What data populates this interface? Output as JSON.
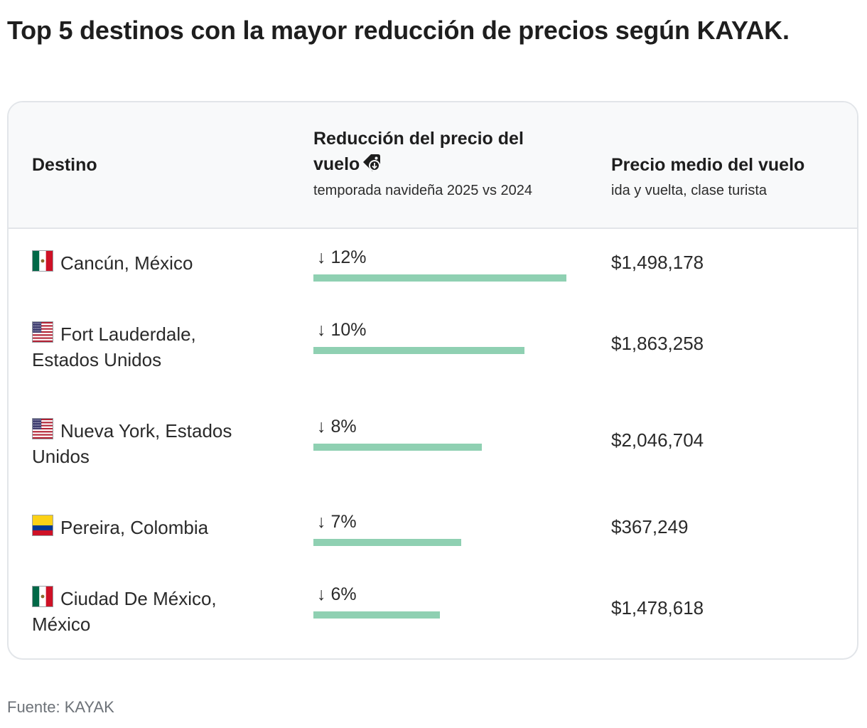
{
  "title": "Top 5 destinos con la mayor reducción de precios según KAYAK.",
  "header": {
    "destino": "Destino",
    "reduccion": "Reducción del precio del vuelo",
    "reduccion_sub": "temporada navideña 2025 vs 2024",
    "precio": "Precio medio del vuelo",
    "precio_sub": "ida y vuelta, clase turista"
  },
  "rows": [
    {
      "destino": "Cancún, México",
      "flag": "mexico",
      "reduccion": "↓ 12%",
      "reduccion_value": 12,
      "precio": "$1,498,178"
    },
    {
      "destino": "Fort Lauderdale, Estados Unidos",
      "flag": "usa",
      "reduccion": "↓ 10%",
      "reduccion_value": 10,
      "precio": "$1,863,258"
    },
    {
      "destino": "Nueva York, Estados Unidos",
      "flag": "usa",
      "reduccion": "↓ 8%",
      "reduccion_value": 8,
      "precio": "$2,046,704"
    },
    {
      "destino": "Pereira, Colombia",
      "flag": "colombia",
      "reduccion": "↓ 7%",
      "reduccion_value": 7,
      "precio": "$367,249"
    },
    {
      "destino": "Ciudad De México, México",
      "flag": "mexico",
      "reduccion": "↓ 6%",
      "reduccion_value": 6,
      "precio": "$1,478,618"
    }
  ],
  "source": "Fuente: KAYAK",
  "colors": {
    "bar": "#8fd0b2",
    "header_bg": "#f8f9fa",
    "border": "#e2e5e9"
  }
}
